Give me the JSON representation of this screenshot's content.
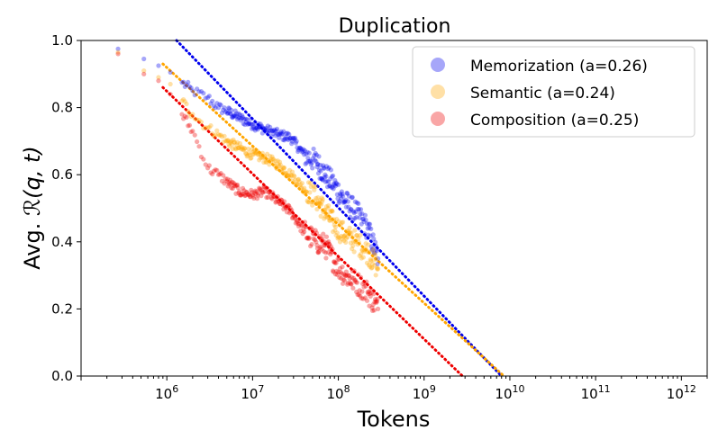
{
  "chart_data": {
    "type": "scatter",
    "title": "Duplication",
    "xlabel": "Tokens",
    "ylabel_prefix": "Avg. ",
    "ylabel_math": "ℛ(q, t)",
    "xscale": "log",
    "xlim": [
      100000,
      2000000000000
    ],
    "ylim": [
      0.0,
      1.0
    ],
    "xticks": [
      {
        "mantissa": "10",
        "exp": "6"
      },
      {
        "mantissa": "10",
        "exp": "7"
      },
      {
        "mantissa": "10",
        "exp": "8"
      },
      {
        "mantissa": "10",
        "exp": "9"
      },
      {
        "mantissa": "10",
        "exp": "10"
      },
      {
        "mantissa": "10",
        "exp": "11"
      },
      {
        "mantissa": "10",
        "exp": "12"
      }
    ],
    "yticks": [
      "0.0",
      "0.2",
      "0.4",
      "0.6",
      "0.8",
      "1.0"
    ],
    "legend_position": "top-right",
    "series": [
      {
        "name": "Memorization (a=0.26)",
        "color": "#0000ee",
        "fit": {
          "x": [
            1300000,
            8000000000
          ],
          "y": [
            1.0,
            0.0
          ]
        },
        "points": [
          {
            "x": 270000,
            "y": 0.975
          },
          {
            "x": 540000,
            "y": 0.945
          },
          {
            "x": 800000,
            "y": 0.925
          },
          {
            "x": 1100000,
            "y": 0.905
          },
          {
            "x": 1500000,
            "y": 0.875
          },
          {
            "x": 2000000,
            "y": 0.85
          },
          {
            "x": 3000000,
            "y": 0.83
          },
          {
            "x": 4000000,
            "y": 0.8
          },
          {
            "x": 5000000,
            "y": 0.79
          },
          {
            "x": 7000000,
            "y": 0.77
          },
          {
            "x": 10000000,
            "y": 0.75
          },
          {
            "x": 14000000,
            "y": 0.735
          },
          {
            "x": 20000000,
            "y": 0.72
          },
          {
            "x": 28000000,
            "y": 0.71
          },
          {
            "x": 40000000,
            "y": 0.66
          },
          {
            "x": 55000000,
            "y": 0.64
          },
          {
            "x": 70000000,
            "y": 0.6
          },
          {
            "x": 90000000,
            "y": 0.57
          },
          {
            "x": 120000000,
            "y": 0.52
          },
          {
            "x": 160000000,
            "y": 0.49
          },
          {
            "x": 220000000,
            "y": 0.44
          },
          {
            "x": 290000000,
            "y": 0.35
          }
        ]
      },
      {
        "name": "Semantic (a=0.24)",
        "color": "#ffa500",
        "fit": {
          "x": [
            900000,
            8500000000
          ],
          "y": [
            0.93,
            0.0
          ]
        },
        "points": [
          {
            "x": 270000,
            "y": 0.965
          },
          {
            "x": 540000,
            "y": 0.91
          },
          {
            "x": 800000,
            "y": 0.89
          },
          {
            "x": 1100000,
            "y": 0.87
          },
          {
            "x": 1500000,
            "y": 0.82
          },
          {
            "x": 2000000,
            "y": 0.78
          },
          {
            "x": 3000000,
            "y": 0.74
          },
          {
            "x": 4000000,
            "y": 0.72
          },
          {
            "x": 5000000,
            "y": 0.7
          },
          {
            "x": 7000000,
            "y": 0.68
          },
          {
            "x": 10000000,
            "y": 0.66
          },
          {
            "x": 14000000,
            "y": 0.65
          },
          {
            "x": 20000000,
            "y": 0.63
          },
          {
            "x": 28000000,
            "y": 0.6
          },
          {
            "x": 40000000,
            "y": 0.56
          },
          {
            "x": 55000000,
            "y": 0.53
          },
          {
            "x": 70000000,
            "y": 0.49
          },
          {
            "x": 90000000,
            "y": 0.45
          },
          {
            "x": 120000000,
            "y": 0.42
          },
          {
            "x": 160000000,
            "y": 0.4
          },
          {
            "x": 220000000,
            "y": 0.37
          },
          {
            "x": 290000000,
            "y": 0.32
          }
        ]
      },
      {
        "name": "Composition (a=0.25)",
        "color": "#ee0000",
        "fit": {
          "x": [
            900000,
            2800000000
          ],
          "y": [
            0.86,
            0.0
          ]
        },
        "points": [
          {
            "x": 270000,
            "y": 0.96
          },
          {
            "x": 540000,
            "y": 0.9
          },
          {
            "x": 800000,
            "y": 0.88
          },
          {
            "x": 1100000,
            "y": 0.84
          },
          {
            "x": 1500000,
            "y": 0.78
          },
          {
            "x": 2000000,
            "y": 0.73
          },
          {
            "x": 3000000,
            "y": 0.62
          },
          {
            "x": 4000000,
            "y": 0.6
          },
          {
            "x": 5000000,
            "y": 0.58
          },
          {
            "x": 7000000,
            "y": 0.55
          },
          {
            "x": 10000000,
            "y": 0.54
          },
          {
            "x": 14000000,
            "y": 0.55
          },
          {
            "x": 20000000,
            "y": 0.52
          },
          {
            "x": 28000000,
            "y": 0.49
          },
          {
            "x": 40000000,
            "y": 0.43
          },
          {
            "x": 55000000,
            "y": 0.4
          },
          {
            "x": 70000000,
            "y": 0.39
          },
          {
            "x": 90000000,
            "y": 0.34
          },
          {
            "x": 120000000,
            "y": 0.3
          },
          {
            "x": 160000000,
            "y": 0.28
          },
          {
            "x": 220000000,
            "y": 0.25
          },
          {
            "x": 290000000,
            "y": 0.2
          }
        ]
      }
    ]
  }
}
